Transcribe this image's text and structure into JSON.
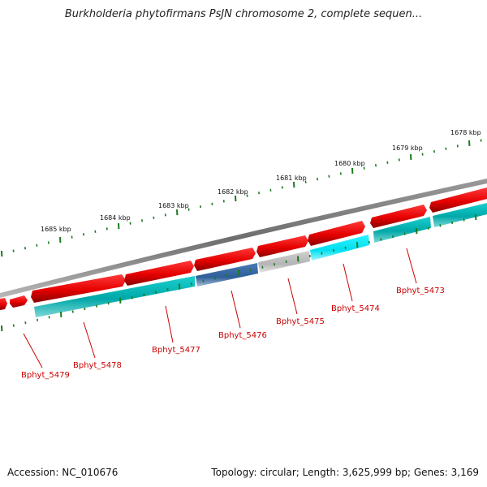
{
  "title": "Burkholderia phytofirmans PsJN chromosome 2, complete sequen...",
  "accession": "Accession: NC_010676",
  "summary": "Topology: circular; Length: 3,625,999 bp; Genes: 3,169",
  "colors": {
    "forward_gene": "#e60000",
    "reverse_gene": "#00b3b3",
    "backbone": "#808080",
    "tick": "#1a7a1a",
    "label": "#cc0000"
  },
  "kbp_labels": [
    "1685 kbp",
    "1684 kbp",
    "1683 kbp",
    "1682 kbp",
    "1681 kbp",
    "1680 kbp",
    "1679 kbp",
    "1678 kbp"
  ],
  "genes": [
    "Bphyt_5479",
    "Bphyt_5478",
    "Bphyt_5477",
    "Bphyt_5476",
    "Bphyt_5475",
    "Bphyt_5474",
    "Bphyt_5473"
  ]
}
